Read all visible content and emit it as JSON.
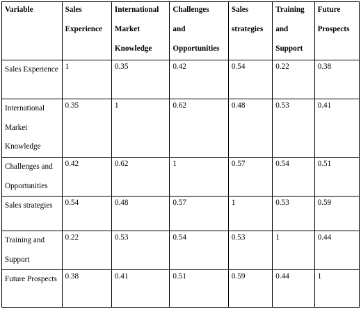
{
  "table": {
    "header": [
      "Variable",
      "Sales Experience",
      "International Market Knowledge",
      "Challenges and Opportunities",
      "Sales strategies",
      "Training and Support",
      "Future Prospects"
    ],
    "header_lines": [
      [
        "Variable"
      ],
      [
        "Sales",
        "Experience"
      ],
      [
        "International",
        "Market",
        "Knowledge"
      ],
      [
        "Challenges",
        "and",
        "Opportunities"
      ],
      [
        "Sales",
        "strategies"
      ],
      [
        "Training",
        "and",
        "Support"
      ],
      [
        "Future",
        "Prospects"
      ]
    ],
    "rows": [
      {
        "label": "Sales Experience",
        "values": [
          "1",
          "0.35",
          "0.42",
          "0.54",
          "0.22",
          "0.38"
        ]
      },
      {
        "label": "International Market Knowledge",
        "values": [
          "0.35",
          "1",
          "0.62",
          "0.48",
          "0.53",
          "0.41"
        ]
      },
      {
        "label": "Challenges and Opportunities",
        "values": [
          "0.42",
          "0.62",
          "1",
          "0.57",
          "0.54",
          "0.51"
        ]
      },
      {
        "label": "Sales strategies",
        "values": [
          "0.54",
          "0.48",
          "0.57",
          "1",
          "0.53",
          "0.59"
        ]
      },
      {
        "label": "Training and Support",
        "values": [
          "0.22",
          "0.53",
          "0.54",
          "0.53",
          "1",
          "0.44"
        ]
      },
      {
        "label": "Future Prospects",
        "values": [
          "0.38",
          "0.41",
          "0.51",
          "0.59",
          "0.44",
          "1"
        ]
      }
    ]
  }
}
